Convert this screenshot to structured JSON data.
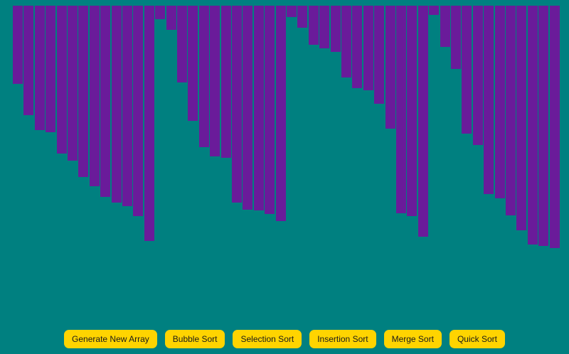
{
  "colors": {
    "background": "#008080",
    "bar": "#6a1b9a",
    "button": "#ffd400",
    "button_text": "#1a1a1a"
  },
  "array": {
    "values": [
      110,
      154,
      175,
      178,
      208,
      218,
      241,
      254,
      269,
      277,
      282,
      296,
      331,
      19,
      34,
      108,
      162,
      199,
      212,
      214,
      277,
      287,
      288,
      293,
      303,
      16,
      31,
      55,
      60,
      65,
      101,
      116,
      119,
      138,
      173,
      292,
      296,
      325,
      13,
      58,
      89,
      180,
      196,
      265,
      271,
      295,
      316,
      336,
      338,
      341
    ]
  },
  "controls": {
    "generate_label": "Generate New Array",
    "bubble_label": "Bubble Sort",
    "selection_label": "Selection Sort",
    "insertion_label": "Insertion Sort",
    "merge_label": "Merge Sort",
    "quick_label": "Quick Sort"
  }
}
